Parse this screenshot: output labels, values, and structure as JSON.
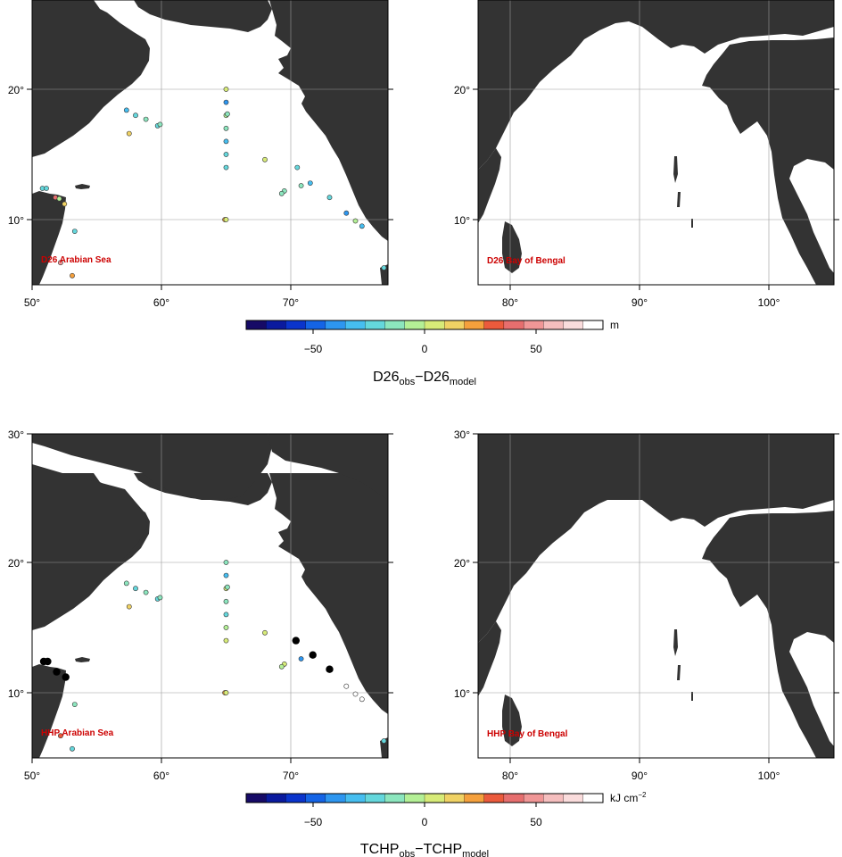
{
  "colors": {
    "land": "#333333",
    "ocean": "#ffffff",
    "grid": "#999999",
    "frame": "#000000",
    "region_label": "#cc0000",
    "missing_point": "#000000",
    "colormap": [
      "#160a66",
      "#0a1a9e",
      "#0a34cc",
      "#1464e6",
      "#2d96f0",
      "#46bef0",
      "#64d7dc",
      "#8ce6be",
      "#b4f096",
      "#d7eb78",
      "#f0d264",
      "#f5a03c",
      "#eb5a3c",
      "#e66e6e",
      "#f09696",
      "#f5bebe",
      "#fadcdc",
      "#ffffff"
    ]
  },
  "tick_labels": {
    "lon_left": [
      "50°",
      "60°",
      "70°"
    ],
    "lon_right": [
      "80°",
      "90°",
      "100°"
    ],
    "lat_top": [
      "20°",
      "10°"
    ],
    "lat_bottom": [
      "30°",
      "20°",
      "10°"
    ]
  },
  "panels": {
    "top": {
      "arabian_label": "D26 Arabian Sea",
      "bengal_label": "D26 Bay of Bengal",
      "colorbar": {
        "ticks": [
          "−50",
          "0",
          "50"
        ],
        "unit": "m"
      },
      "caption": {
        "a": "D26",
        "a_sub": "obs",
        "dash": "−",
        "b": "D26",
        "b_sub": "model"
      }
    },
    "bottom": {
      "arabian_label": "HHP Arabian Sea",
      "bengal_label": "HHP Bay of Bengal",
      "colorbar": {
        "ticks": [
          "−50",
          "0",
          "50"
        ],
        "unit": "kJ cm",
        "unit_exp": "−2"
      },
      "caption": {
        "a": "TCHP",
        "a_sub": "obs",
        "dash": "−",
        "b": "TCHP",
        "b_sub": "model"
      }
    }
  },
  "colorbar_range": [
    -80,
    80
  ],
  "points_top": [
    {
      "lon": 65.0,
      "lat": 20.0,
      "v": 5
    },
    {
      "lon": 65.0,
      "lat": 19.0,
      "v": -40
    },
    {
      "lon": 65.0,
      "lat": 18.0,
      "v": -5
    },
    {
      "lon": 65.1,
      "lat": 18.1,
      "v": -15
    },
    {
      "lon": 65.0,
      "lat": 17.0,
      "v": -10
    },
    {
      "lon": 65.0,
      "lat": 16.0,
      "v": -35
    },
    {
      "lon": 65.0,
      "lat": 15.0,
      "v": -25
    },
    {
      "lon": 65.0,
      "lat": 14.0,
      "v": -20
    },
    {
      "lon": 64.9,
      "lat": 10.0,
      "v": 18
    },
    {
      "lon": 65.0,
      "lat": 10.0,
      "v": 5
    },
    {
      "lon": 57.3,
      "lat": 18.4,
      "v": -30
    },
    {
      "lon": 58.0,
      "lat": 18.0,
      "v": -20
    },
    {
      "lon": 58.8,
      "lat": 17.7,
      "v": -15
    },
    {
      "lon": 59.7,
      "lat": 17.2,
      "v": -20
    },
    {
      "lon": 59.9,
      "lat": 17.3,
      "v": -10
    },
    {
      "lon": 57.5,
      "lat": 16.6,
      "v": 12
    },
    {
      "lon": 68.0,
      "lat": 14.6,
      "v": 8
    },
    {
      "lon": 70.5,
      "lat": 14.0,
      "v": -20
    },
    {
      "lon": 71.5,
      "lat": 12.8,
      "v": -30
    },
    {
      "lon": 70.8,
      "lat": 12.6,
      "v": -15
    },
    {
      "lon": 69.5,
      "lat": 12.2,
      "v": -15
    },
    {
      "lon": 69.3,
      "lat": 12.0,
      "v": -10
    },
    {
      "lon": 73.0,
      "lat": 11.7,
      "v": -20
    },
    {
      "lon": 74.3,
      "lat": 10.5,
      "v": -40
    },
    {
      "lon": 75.0,
      "lat": 9.9,
      "v": -5
    },
    {
      "lon": 75.5,
      "lat": 9.5,
      "v": -35
    },
    {
      "lon": 77.2,
      "lat": 6.3,
      "v": -20
    },
    {
      "lon": 50.8,
      "lat": 12.4,
      "v": -25
    },
    {
      "lon": 51.1,
      "lat": 12.4,
      "v": -20
    },
    {
      "lon": 51.8,
      "lat": 11.7,
      "v": 40
    },
    {
      "lon": 52.1,
      "lat": 11.6,
      "v": -5
    },
    {
      "lon": 52.5,
      "lat": 11.2,
      "v": 10
    },
    {
      "lon": 53.3,
      "lat": 9.1,
      "v": -20
    },
    {
      "lon": 52.2,
      "lat": 6.7,
      "v": 45
    },
    {
      "lon": 53.1,
      "lat": 5.7,
      "v": 20
    }
  ],
  "points_bottom": [
    {
      "lon": 65.0,
      "lat": 20.0,
      "v": -10
    },
    {
      "lon": 65.0,
      "lat": 19.0,
      "v": -35
    },
    {
      "lon": 65.0,
      "lat": 18.0,
      "v": 8
    },
    {
      "lon": 65.1,
      "lat": 18.1,
      "v": -15
    },
    {
      "lon": 65.0,
      "lat": 17.0,
      "v": -15
    },
    {
      "lon": 65.0,
      "lat": 16.0,
      "v": -20
    },
    {
      "lon": 65.0,
      "lat": 15.0,
      "v": -5
    },
    {
      "lon": 65.0,
      "lat": 14.0,
      "v": 0
    },
    {
      "lon": 64.9,
      "lat": 10.0,
      "v": 18
    },
    {
      "lon": 65.0,
      "lat": 10.0,
      "v": 5
    },
    {
      "lon": 57.3,
      "lat": 18.4,
      "v": -15
    },
    {
      "lon": 58.0,
      "lat": 18.0,
      "v": -20
    },
    {
      "lon": 58.8,
      "lat": 17.7,
      "v": -15
    },
    {
      "lon": 59.7,
      "lat": 17.2,
      "v": -25
    },
    {
      "lon": 59.9,
      "lat": 17.3,
      "v": -10
    },
    {
      "lon": 57.5,
      "lat": 16.6,
      "v": 12
    },
    {
      "lon": 68.0,
      "lat": 14.6,
      "v": 8
    },
    {
      "lon": 70.8,
      "lat": 12.6,
      "v": -40
    },
    {
      "lon": 69.5,
      "lat": 12.2,
      "v": 5
    },
    {
      "lon": 69.3,
      "lat": 12.0,
      "v": -5
    },
    {
      "lon": 74.3,
      "lat": 10.5,
      "v": 75
    },
    {
      "lon": 75.0,
      "lat": 9.9,
      "v": 78
    },
    {
      "lon": 75.5,
      "lat": 9.5,
      "v": 75
    },
    {
      "lon": 77.2,
      "lat": 6.3,
      "v": -20
    },
    {
      "lon": 53.3,
      "lat": 9.1,
      "v": -15
    },
    {
      "lon": 52.2,
      "lat": 6.7,
      "v": 30
    },
    {
      "lon": 53.1,
      "lat": 5.7,
      "v": -20
    }
  ],
  "missing_bottom": [
    {
      "lon": 50.9,
      "lat": 12.4
    },
    {
      "lon": 51.2,
      "lat": 12.4
    },
    {
      "lon": 51.9,
      "lat": 11.6
    },
    {
      "lon": 52.6,
      "lat": 11.2
    },
    {
      "lon": 70.4,
      "lat": 14.0
    },
    {
      "lon": 71.7,
      "lat": 12.9
    },
    {
      "lon": 73.0,
      "lat": 11.8
    }
  ]
}
